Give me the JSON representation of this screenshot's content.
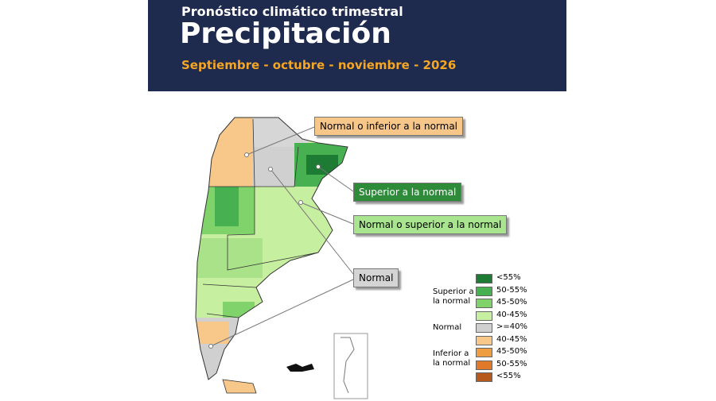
{
  "header": {
    "subtitle": "Pronóstico climático trimestral",
    "title": "Precipitación",
    "period": "Septiembre - octubre - noviembre - 2026"
  },
  "callouts": [
    {
      "label": "Normal o inferior a la normal",
      "color": "#f7c78a"
    },
    {
      "label": "Superior a la normal",
      "color": "#2e8b3a"
    },
    {
      "label": "Normal o superior a la normal",
      "color": "#a8e58e"
    },
    {
      "label": "Normal",
      "color": "#d4d4d4"
    }
  ],
  "legend": {
    "groups": [
      {
        "label": "Superior a la normal",
        "items": [
          {
            "label": "<55%",
            "color": "#1e7b34"
          },
          {
            "label": "50-55%",
            "color": "#47b050"
          },
          {
            "label": "45-50%",
            "color": "#7fd36a"
          },
          {
            "label": "40-45%",
            "color": "#c6ef a0"
          }
        ]
      },
      {
        "label": "Normal",
        "items": [
          {
            "label": ">=40%",
            "color": "#d0d0d0"
          }
        ]
      },
      {
        "label": "Inferior a la normal",
        "items": [
          {
            "label": "40-45%",
            "color": "#f7c88a"
          },
          {
            "label": "45-50%",
            "color": "#ee9d40"
          },
          {
            "label": "50-55%",
            "color": "#e07a2a"
          },
          {
            "label": "<55%",
            "color": "#b55a1c"
          }
        ]
      }
    ]
  }
}
